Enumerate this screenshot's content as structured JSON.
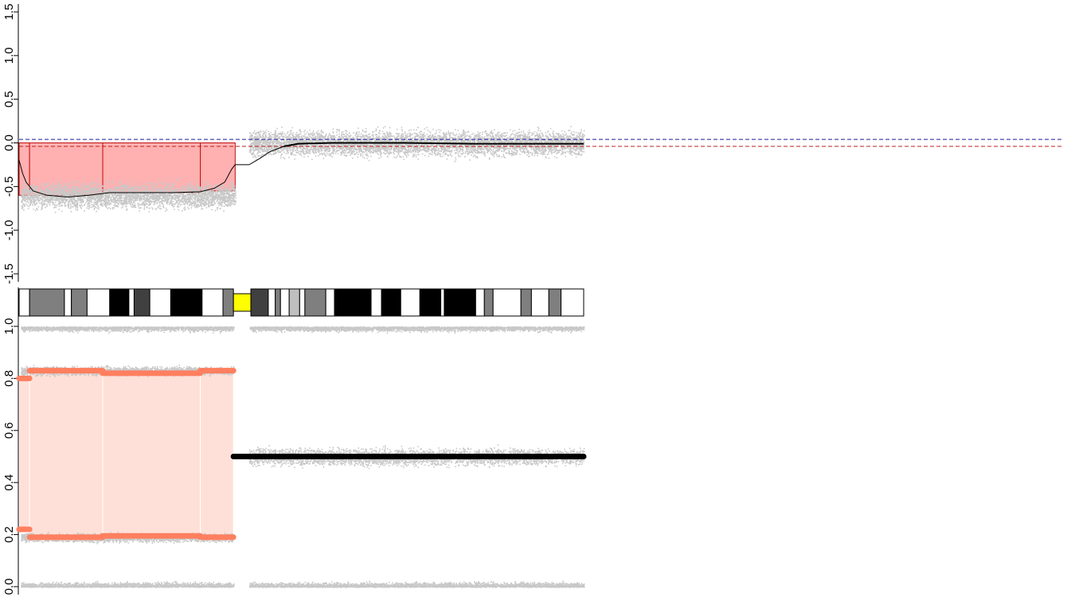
{
  "chart_data": [
    {
      "type": "scatter",
      "ylim": [
        -1.5,
        1.5
      ],
      "ytick_labels": [
        "-1.5",
        "-1.0",
        "-0.5",
        "0.0",
        "0.5",
        "1.0",
        "1.5"
      ],
      "yticks": [
        -1.5,
        -1.0,
        -0.5,
        0.0,
        0.5,
        1.0,
        1.5
      ],
      "reference_lines": [
        {
          "y": 0.04,
          "color": "#1a1aa0",
          "style": "dashed"
        },
        {
          "y": -0.04,
          "color": "#c02020",
          "style": "dashed"
        }
      ],
      "loss_segments": [
        {
          "x_start": 0.0,
          "x_end": 3.0,
          "y": -0.6
        },
        {
          "x_start": 3.0,
          "x_end": 24.0,
          "y": -0.6
        },
        {
          "x_start": 24.0,
          "x_end": 52.0,
          "y": -0.57
        },
        {
          "x_start": 52.0,
          "x_end": 62.0,
          "y": -0.55
        }
      ],
      "smoothed_line": [
        [
          0,
          -0.2
        ],
        [
          1,
          -0.35
        ],
        [
          2,
          -0.45
        ],
        [
          4,
          -0.55
        ],
        [
          8,
          -0.6
        ],
        [
          14,
          -0.62
        ],
        [
          20,
          -0.6
        ],
        [
          26,
          -0.57
        ],
        [
          34,
          -0.57
        ],
        [
          44,
          -0.57
        ],
        [
          52,
          -0.56
        ],
        [
          56,
          -0.52
        ],
        [
          59,
          -0.45
        ],
        [
          61,
          -0.3
        ],
        [
          62,
          -0.25
        ],
        [
          66,
          -0.25
        ],
        [
          69,
          -0.18
        ],
        [
          72,
          -0.1
        ],
        [
          76,
          -0.04
        ],
        [
          80,
          -0.01
        ],
        [
          90,
          0.0
        ],
        [
          110,
          0.0
        ],
        [
          130,
          -0.01
        ],
        [
          150,
          -0.01
        ],
        [
          162,
          -0.01
        ]
      ],
      "noise_regions": [
        {
          "x_start": 0.5,
          "x_end": 62,
          "center": -0.6,
          "spread": 0.3
        },
        {
          "x_start": 66,
          "x_end": 162,
          "center": 0.0,
          "spread": 0.3
        }
      ],
      "colors": {
        "points": "#c8c8c8",
        "loss_fill": "#ffb0b0",
        "loss_edge": "#c01010",
        "line": "#000000"
      }
    },
    {
      "type": "ideogram",
      "bands": [
        {
          "x_start": 0,
          "x_end": 3,
          "color": "#ffffff"
        },
        {
          "x_start": 3,
          "x_end": 13,
          "color": "#7f7f7f"
        },
        {
          "x_start": 13,
          "x_end": 15,
          "color": "#ffffff"
        },
        {
          "x_start": 15,
          "x_end": 19.5,
          "color": "#7f7f7f"
        },
        {
          "x_start": 19.5,
          "x_end": 26,
          "color": "#ffffff"
        },
        {
          "x_start": 26,
          "x_end": 31.5,
          "color": "#000000"
        },
        {
          "x_start": 31.5,
          "x_end": 33,
          "color": "#ffffff"
        },
        {
          "x_start": 33,
          "x_end": 37.5,
          "color": "#404040"
        },
        {
          "x_start": 37.5,
          "x_end": 43.5,
          "color": "#ffffff"
        },
        {
          "x_start": 43.5,
          "x_end": 52.5,
          "color": "#000000"
        },
        {
          "x_start": 52.5,
          "x_end": 58.5,
          "color": "#ffffff"
        },
        {
          "x_start": 58.5,
          "x_end": 61.5,
          "color": "#7f7f7f"
        },
        {
          "x_start": 61.5,
          "x_end": 66.5,
          "color": "#ffff00",
          "centromere": true
        },
        {
          "x_start": 66.5,
          "x_end": 71.5,
          "color": "#404040"
        },
        {
          "x_start": 71.5,
          "x_end": 73.5,
          "color": "#ffffff"
        },
        {
          "x_start": 73.5,
          "x_end": 75,
          "color": "#7f7f7f"
        },
        {
          "x_start": 75,
          "x_end": 77.5,
          "color": "#ffffff"
        },
        {
          "x_start": 77.5,
          "x_end": 80.5,
          "color": "#bfbfbf"
        },
        {
          "x_start": 80.5,
          "x_end": 82,
          "color": "#ffffff"
        },
        {
          "x_start": 82,
          "x_end": 88,
          "color": "#7f7f7f"
        },
        {
          "x_start": 88,
          "x_end": 90.5,
          "color": "#ffffff"
        },
        {
          "x_start": 90.5,
          "x_end": 101,
          "color": "#000000"
        },
        {
          "x_start": 101,
          "x_end": 104,
          "color": "#ffffff"
        },
        {
          "x_start": 104,
          "x_end": 109.5,
          "color": "#000000"
        },
        {
          "x_start": 109.5,
          "x_end": 115,
          "color": "#ffffff"
        },
        {
          "x_start": 115,
          "x_end": 121,
          "color": "#000000"
        },
        {
          "x_start": 121,
          "x_end": 122,
          "color": "#ffffff"
        },
        {
          "x_start": 122,
          "x_end": 131,
          "color": "#000000"
        },
        {
          "x_start": 131,
          "x_end": 133.5,
          "color": "#ffffff"
        },
        {
          "x_start": 133.5,
          "x_end": 136,
          "color": "#7f7f7f"
        },
        {
          "x_start": 136,
          "x_end": 144,
          "color": "#ffffff"
        },
        {
          "x_start": 144,
          "x_end": 147,
          "color": "#7f7f7f"
        },
        {
          "x_start": 147,
          "x_end": 152,
          "color": "#ffffff"
        },
        {
          "x_start": 152,
          "x_end": 155.5,
          "color": "#7f7f7f"
        },
        {
          "x_start": 155.5,
          "x_end": 162,
          "color": "#ffffff"
        }
      ]
    },
    {
      "type": "scatter",
      "ylim": [
        0.0,
        1.0
      ],
      "ytick_labels": [
        "0.0",
        "0.2",
        "0.4",
        "0.6",
        "0.8",
        "1.0"
      ],
      "yticks": [
        0.0,
        0.2,
        0.4,
        0.6,
        0.8,
        1.0
      ],
      "segments": [
        {
          "x_start": 0.0,
          "x_end": 3.0,
          "upper": 0.8,
          "lower": 0.22
        },
        {
          "x_start": 3.0,
          "x_end": 24.0,
          "upper": 0.83,
          "lower": 0.19
        },
        {
          "x_start": 24.0,
          "x_end": 52.0,
          "upper": 0.82,
          "lower": 0.195
        },
        {
          "x_start": 52.0,
          "x_end": 61.5,
          "upper": 0.83,
          "lower": 0.19
        }
      ],
      "balanced_line": {
        "x_start": 61.5,
        "x_end": 162,
        "y": 0.5
      },
      "noise_bands": [
        {
          "x_start": 0.5,
          "x_end": 61.5,
          "y": 1.0,
          "spread": 0.03,
          "direction": "down"
        },
        {
          "x_start": 0.5,
          "x_end": 61.5,
          "y": 0.0,
          "spread": 0.03,
          "direction": "up"
        },
        {
          "x_start": 0.5,
          "x_end": 61.5,
          "y": 0.83,
          "spread": 0.03
        },
        {
          "x_start": 0.5,
          "x_end": 61.5,
          "y": 0.19,
          "spread": 0.03
        },
        {
          "x_start": 66,
          "x_end": 162,
          "y": 1.0,
          "spread": 0.03,
          "direction": "down"
        },
        {
          "x_start": 66,
          "x_end": 162,
          "y": 0.0,
          "spread": 0.03,
          "direction": "up"
        },
        {
          "x_start": 66,
          "x_end": 162,
          "y": 0.5,
          "spread": 0.06
        }
      ],
      "colors": {
        "points": "#c8c8c8",
        "segment_line": "#ff7f5f",
        "segment_fill": "#ffe0d8",
        "balanced": "#000000"
      }
    }
  ]
}
